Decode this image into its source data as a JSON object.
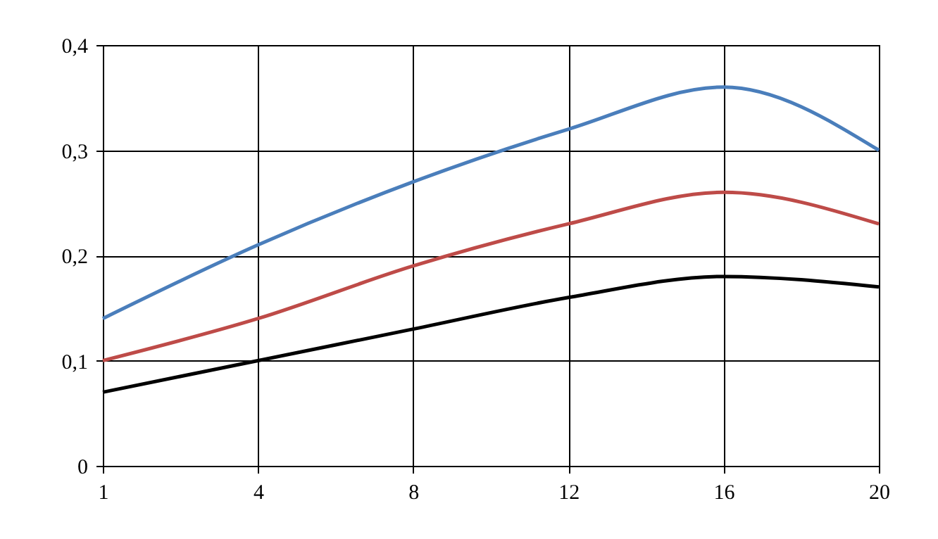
{
  "chart_data": {
    "type": "line",
    "categories": [
      "1",
      "4",
      "8",
      "12",
      "16",
      "20"
    ],
    "series": [
      {
        "color": "#4a7ebb",
        "values": [
          0.14,
          0.21,
          0.27,
          0.32,
          0.36,
          0.3
        ]
      },
      {
        "color": "#be4b48",
        "values": [
          0.1,
          0.14,
          0.19,
          0.23,
          0.26,
          0.23
        ]
      },
      {
        "color": "#000000",
        "values": [
          0.07,
          0.1,
          0.13,
          0.16,
          0.18,
          0.17
        ]
      }
    ],
    "ylim": [
      0,
      0.4
    ],
    "yticks": [
      0,
      {
        "value": 0.1,
        "label": "0,1"
      },
      {
        "value": 0.2,
        "label": "0,2"
      },
      {
        "value": 0.3,
        "label": "0,3"
      },
      {
        "value": 0.4,
        "label": "0,4"
      }
    ],
    "grid": true,
    "marker": "none",
    "line_style": "solid",
    "legend": false
  }
}
